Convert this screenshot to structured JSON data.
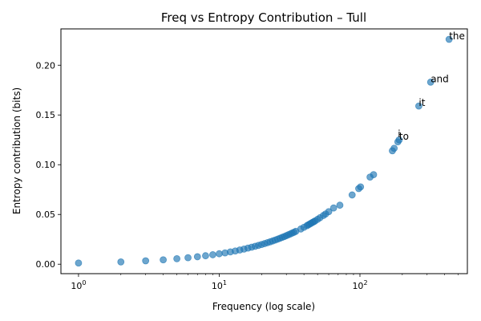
{
  "chart_data": {
    "type": "scatter",
    "title": "Freq vs Entropy Contribution – Tull",
    "xlabel": "Frequency (log scale)",
    "ylabel": "Entropy contribution (bits)",
    "x_scale": "log",
    "xlim": [
      0.75,
      580
    ],
    "ylim": [
      -0.0095,
      0.2365
    ],
    "x_ticks": [
      {
        "value": 1,
        "base": "10",
        "exp": "0"
      },
      {
        "value": 10,
        "base": "10",
        "exp": "1"
      },
      {
        "value": 100,
        "base": "10",
        "exp": "2"
      }
    ],
    "y_ticks": [
      {
        "value": 0.0,
        "label": "0.00"
      },
      {
        "value": 0.05,
        "label": "0.05"
      },
      {
        "value": 0.1,
        "label": "0.10"
      },
      {
        "value": 0.15,
        "label": "0.15"
      },
      {
        "value": 0.2,
        "label": "0.20"
      }
    ],
    "grid": false,
    "marker_color": "#1f77b4",
    "marker_opacity": 0.65,
    "points": [
      [
        1,
        0.0012
      ],
      [
        2,
        0.0023
      ],
      [
        3,
        0.0034
      ],
      [
        4,
        0.0044
      ],
      [
        5,
        0.0055
      ],
      [
        6,
        0.0065
      ],
      [
        7,
        0.0075
      ],
      [
        8,
        0.0085
      ],
      [
        9,
        0.0095
      ],
      [
        10,
        0.0105
      ],
      [
        11,
        0.0114
      ],
      [
        12,
        0.0124
      ],
      [
        13,
        0.0133
      ],
      [
        14,
        0.0143
      ],
      [
        15,
        0.0152
      ],
      [
        16,
        0.0162
      ],
      [
        17,
        0.0171
      ],
      [
        18,
        0.018
      ],
      [
        19,
        0.0189
      ],
      [
        20,
        0.0198
      ],
      [
        21,
        0.0207
      ],
      [
        22,
        0.0216
      ],
      [
        23,
        0.0225
      ],
      [
        24,
        0.0234
      ],
      [
        25,
        0.0243
      ],
      [
        26,
        0.0252
      ],
      [
        27,
        0.0261
      ],
      [
        28,
        0.027
      ],
      [
        29,
        0.0278
      ],
      [
        30,
        0.0287
      ],
      [
        31,
        0.0296
      ],
      [
        32,
        0.0304
      ],
      [
        33,
        0.0313
      ],
      [
        34,
        0.0321
      ],
      [
        35,
        0.033
      ],
      [
        38,
        0.0354
      ],
      [
        40,
        0.0371
      ],
      [
        42,
        0.0387
      ],
      [
        43,
        0.0396
      ],
      [
        44,
        0.0404
      ],
      [
        45,
        0.0412
      ],
      [
        46,
        0.042
      ],
      [
        47,
        0.0427
      ],
      [
        48,
        0.0435
      ],
      [
        50,
        0.0451
      ],
      [
        52,
        0.0467
      ],
      [
        55,
        0.049
      ],
      [
        57,
        0.0505
      ],
      [
        60,
        0.0528
      ],
      [
        65,
        0.0565
      ],
      [
        72,
        0.0593
      ],
      [
        88,
        0.0696
      ],
      [
        98,
        0.076
      ],
      [
        101,
        0.0777
      ],
      [
        118,
        0.0876
      ],
      [
        125,
        0.09
      ],
      [
        170,
        0.114
      ],
      [
        175,
        0.1165
      ],
      [
        186,
        0.123
      ],
      [
        190,
        0.125
      ],
      [
        262,
        0.159
      ],
      [
        318,
        0.183
      ],
      [
        430,
        0.226
      ]
    ],
    "annotations": [
      {
        "text": "the",
        "x": 430,
        "y": 0.226
      },
      {
        "text": "and",
        "x": 318,
        "y": 0.183
      },
      {
        "text": "it",
        "x": 262,
        "y": 0.159
      },
      {
        "text": "i",
        "x": 186,
        "y": 0.1275
      },
      {
        "text": "to",
        "x": 190,
        "y": 0.125
      }
    ]
  }
}
